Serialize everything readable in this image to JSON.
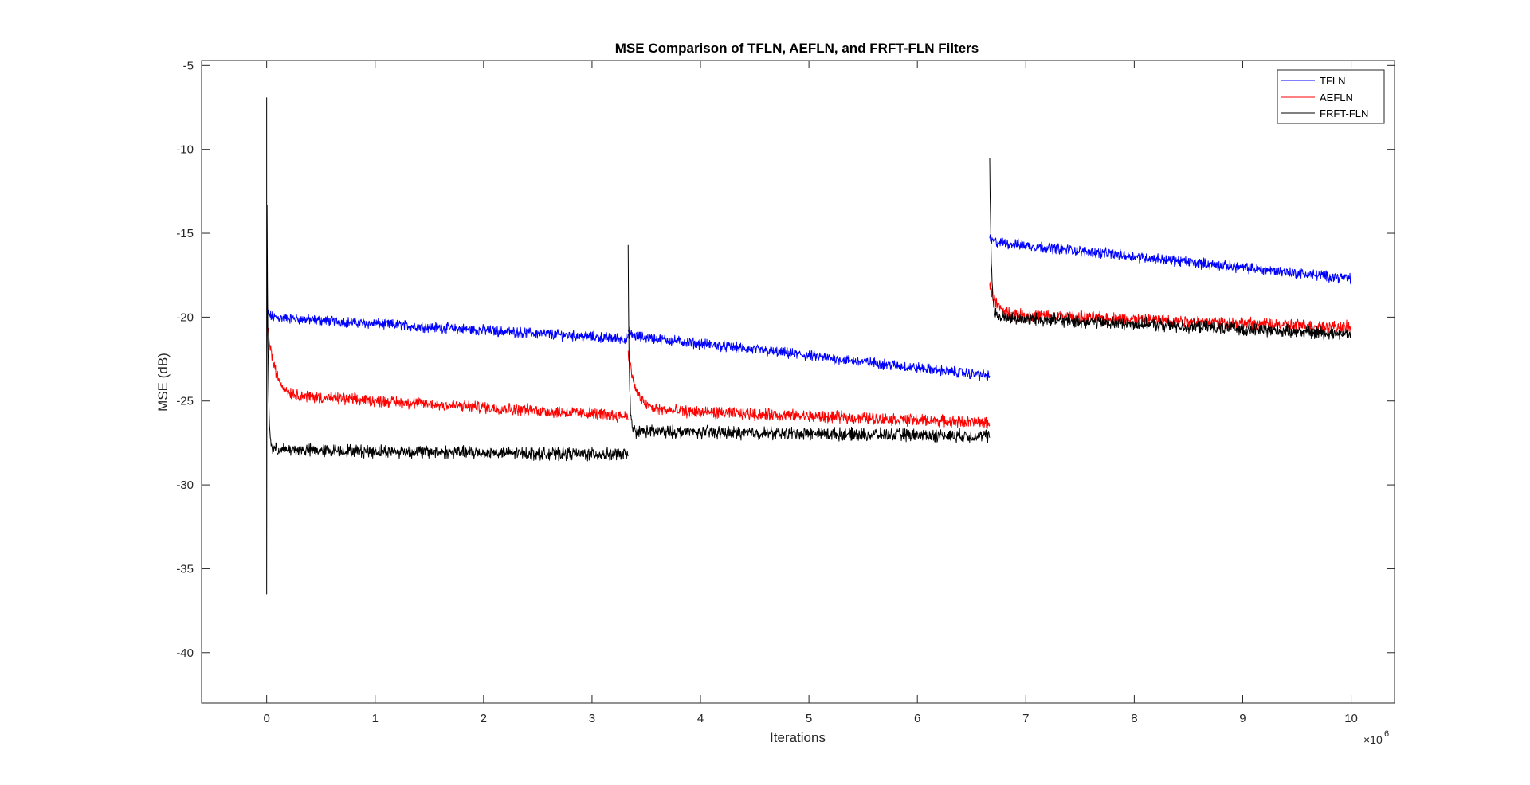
{
  "chart_data": {
    "type": "line",
    "title": "MSE Comparison of TFLN, AEFLN, and FRFT-FLN Filters",
    "xlabel": "Iterations",
    "ylabel": "MSE (dB)",
    "x_exponent_base": "×10",
    "x_exponent_power": "6",
    "xlim": [
      -0.6,
      10.4
    ],
    "ylim": [
      -43,
      -4.7
    ],
    "xticks": [
      0,
      1,
      2,
      3,
      4,
      5,
      6,
      7,
      8,
      9,
      10
    ],
    "xtick_labels": [
      "0",
      "1",
      "2",
      "3",
      "4",
      "5",
      "6",
      "7",
      "8",
      "9",
      "10"
    ],
    "yticks": [
      -40,
      -35,
      -30,
      -25,
      -20,
      -15,
      -10,
      -5
    ],
    "ytick_labels": [
      "-40",
      "-35",
      "-30",
      "-25",
      "-20",
      "-15",
      "-10",
      "-5"
    ],
    "grid": false,
    "legend_position": "top-right",
    "segments": [
      [
        0,
        3.333
      ],
      [
        3.333,
        6.667
      ],
      [
        6.667,
        10
      ]
    ],
    "series": [
      {
        "name": "TFLN",
        "color": "#0000ff",
        "noise": 0.25,
        "segments": [
          {
            "peak": -19.5,
            "tau": 0.02,
            "start": -20.0,
            "end": -21.3
          },
          {
            "peak": -20.8,
            "tau": 0.02,
            "start": -21.1,
            "end": -23.5
          },
          {
            "peak": -15.3,
            "tau": 0.02,
            "start": -15.5,
            "end": -17.7
          }
        ]
      },
      {
        "name": "AEFLN",
        "color": "#ff0000",
        "noise": 0.28,
        "segments": [
          {
            "peak": -20.0,
            "tau": 0.07,
            "start": -24.6,
            "end": -25.9
          },
          {
            "peak": -22.0,
            "tau": 0.07,
            "start": -25.5,
            "end": -26.3
          },
          {
            "peak": -18.0,
            "tau": 0.06,
            "start": -19.8,
            "end": -20.6
          }
        ]
      },
      {
        "name": "FRFT-FLN",
        "color": "#000000",
        "noise": 0.3,
        "segments": [
          {
            "peak": -6.9,
            "dip": -36.5,
            "tau": 0.01,
            "start": -27.9,
            "end": -28.2
          },
          {
            "peak": -15.7,
            "tau": 0.01,
            "start": -26.8,
            "end": -27.1
          },
          {
            "peak": -10.5,
            "tau": 0.015,
            "start": -20.0,
            "end": -21.0
          }
        ]
      }
    ]
  }
}
